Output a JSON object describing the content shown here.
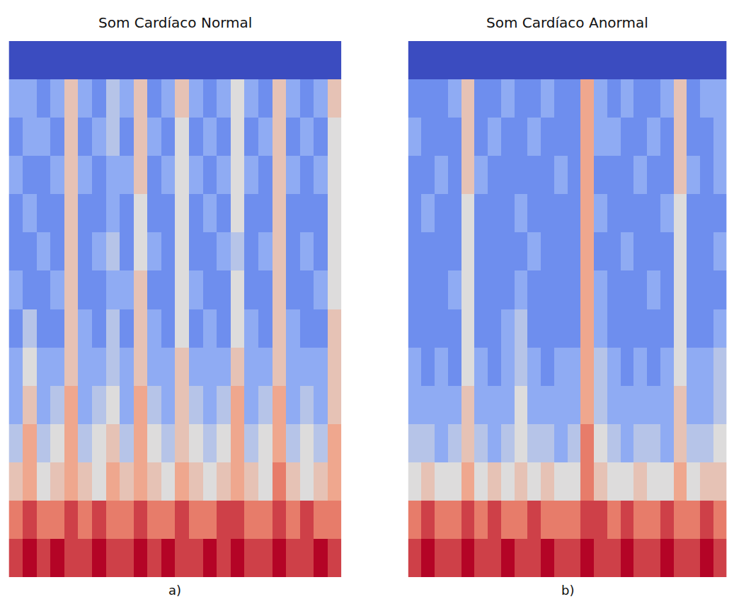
{
  "chart_data": [
    {
      "type": "heatmap",
      "title": "Som Cardíaco Normal",
      "annotation": "a)",
      "tick_labels": false,
      "zlim": [
        0,
        10
      ],
      "cells": [
        [
          0,
          0,
          0,
          0,
          0,
          0,
          0,
          0,
          0,
          0,
          0,
          0,
          0,
          0,
          0,
          0,
          0,
          0,
          0,
          0,
          0,
          0,
          0,
          0
        ],
        [
          3,
          3,
          2,
          3,
          6,
          3,
          2,
          4,
          3,
          6,
          2,
          3,
          6,
          3,
          2,
          3,
          5,
          3,
          2,
          6,
          3,
          2,
          3,
          6
        ],
        [
          2,
          3,
          3,
          2,
          6,
          2,
          3,
          4,
          2,
          6,
          3,
          2,
          5,
          2,
          3,
          2,
          5,
          2,
          3,
          6,
          2,
          3,
          2,
          5
        ],
        [
          3,
          2,
          2,
          3,
          6,
          3,
          2,
          3,
          3,
          6,
          2,
          3,
          5,
          3,
          2,
          3,
          5,
          3,
          2,
          6,
          3,
          2,
          3,
          5
        ],
        [
          2,
          3,
          2,
          2,
          6,
          2,
          2,
          3,
          2,
          5,
          2,
          2,
          5,
          2,
          3,
          2,
          5,
          2,
          2,
          6,
          2,
          2,
          2,
          5
        ],
        [
          2,
          2,
          3,
          2,
          6,
          2,
          3,
          4,
          2,
          5,
          3,
          2,
          5,
          2,
          2,
          3,
          4,
          2,
          3,
          6,
          2,
          3,
          2,
          5
        ],
        [
          3,
          2,
          2,
          3,
          6,
          2,
          2,
          3,
          3,
          6,
          2,
          2,
          5,
          3,
          2,
          2,
          5,
          2,
          2,
          6,
          2,
          2,
          3,
          5
        ],
        [
          2,
          4,
          2,
          2,
          6,
          3,
          2,
          4,
          2,
          6,
          3,
          2,
          5,
          2,
          3,
          2,
          5,
          3,
          2,
          6,
          3,
          2,
          2,
          6
        ],
        [
          3,
          5,
          3,
          3,
          6,
          3,
          3,
          4,
          3,
          6,
          3,
          3,
          6,
          3,
          3,
          3,
          6,
          3,
          3,
          6,
          3,
          3,
          3,
          6
        ],
        [
          3,
          6,
          3,
          4,
          7,
          3,
          4,
          5,
          3,
          7,
          4,
          3,
          6,
          4,
          3,
          4,
          7,
          3,
          4,
          7,
          3,
          4,
          3,
          6
        ],
        [
          4,
          7,
          4,
          5,
          7,
          4,
          5,
          6,
          4,
          7,
          5,
          4,
          6,
          5,
          4,
          5,
          7,
          4,
          5,
          7,
          4,
          5,
          4,
          7
        ],
        [
          6,
          7,
          5,
          6,
          7,
          6,
          5,
          7,
          6,
          7,
          6,
          5,
          7,
          6,
          5,
          6,
          7,
          6,
          5,
          8,
          6,
          5,
          6,
          7
        ],
        [
          8,
          9,
          8,
          8,
          9,
          8,
          9,
          8,
          8,
          9,
          8,
          8,
          9,
          8,
          8,
          9,
          9,
          8,
          8,
          9,
          8,
          9,
          8,
          8
        ],
        [
          9,
          10,
          9,
          10,
          9,
          9,
          10,
          9,
          9,
          10,
          9,
          10,
          9,
          9,
          10,
          9,
          10,
          9,
          9,
          10,
          9,
          9,
          10,
          9
        ]
      ]
    },
    {
      "type": "heatmap",
      "title": "Som Cardíaco Anormal",
      "annotation": "b)",
      "tick_labels": false,
      "zlim": [
        0,
        10
      ],
      "cells": [
        [
          0,
          0,
          0,
          0,
          0,
          0,
          0,
          0,
          0,
          0,
          0,
          0,
          0,
          0,
          0,
          0,
          0,
          0,
          0,
          0,
          0,
          0,
          0,
          0
        ],
        [
          2,
          2,
          2,
          3,
          6,
          2,
          2,
          3,
          2,
          2,
          3,
          2,
          2,
          7,
          3,
          2,
          3,
          2,
          2,
          3,
          6,
          2,
          3,
          3
        ],
        [
          3,
          2,
          2,
          2,
          6,
          2,
          3,
          2,
          2,
          3,
          2,
          2,
          2,
          7,
          3,
          3,
          2,
          2,
          3,
          2,
          6,
          2,
          2,
          3
        ],
        [
          2,
          2,
          3,
          2,
          6,
          3,
          2,
          2,
          2,
          2,
          2,
          3,
          2,
          7,
          2,
          2,
          2,
          3,
          2,
          2,
          6,
          3,
          2,
          3
        ],
        [
          2,
          3,
          2,
          2,
          5,
          2,
          2,
          2,
          3,
          2,
          2,
          2,
          2,
          7,
          3,
          2,
          2,
          2,
          2,
          3,
          5,
          2,
          2,
          2
        ],
        [
          2,
          2,
          2,
          2,
          5,
          2,
          2,
          2,
          2,
          3,
          2,
          2,
          2,
          7,
          2,
          2,
          3,
          2,
          2,
          2,
          5,
          2,
          2,
          3
        ],
        [
          2,
          2,
          2,
          3,
          5,
          2,
          2,
          2,
          3,
          2,
          2,
          2,
          2,
          7,
          3,
          2,
          2,
          2,
          3,
          2,
          5,
          2,
          2,
          2
        ],
        [
          2,
          2,
          2,
          2,
          5,
          2,
          2,
          3,
          4,
          2,
          2,
          2,
          2,
          7,
          3,
          2,
          2,
          2,
          2,
          2,
          5,
          2,
          2,
          3
        ],
        [
          3,
          2,
          3,
          2,
          5,
          3,
          2,
          3,
          4,
          3,
          2,
          3,
          3,
          7,
          4,
          3,
          2,
          3,
          2,
          3,
          5,
          3,
          3,
          4
        ],
        [
          3,
          3,
          3,
          3,
          6,
          3,
          3,
          3,
          5,
          3,
          3,
          3,
          3,
          7,
          4,
          3,
          3,
          3,
          3,
          3,
          6,
          3,
          3,
          4
        ],
        [
          4,
          4,
          3,
          4,
          6,
          4,
          3,
          4,
          5,
          4,
          4,
          3,
          4,
          8,
          5,
          4,
          3,
          4,
          4,
          3,
          6,
          4,
          4,
          5
        ],
        [
          5,
          6,
          5,
          5,
          7,
          5,
          6,
          5,
          6,
          5,
          6,
          5,
          5,
          8,
          6,
          5,
          5,
          6,
          5,
          5,
          7,
          5,
          6,
          6
        ],
        [
          8,
          9,
          8,
          8,
          9,
          8,
          9,
          8,
          8,
          9,
          8,
          8,
          8,
          9,
          9,
          8,
          9,
          8,
          8,
          9,
          8,
          8,
          9,
          8
        ],
        [
          9,
          10,
          9,
          9,
          10,
          9,
          9,
          10,
          9,
          9,
          10,
          9,
          9,
          10,
          9,
          9,
          10,
          9,
          9,
          10,
          9,
          9,
          10,
          9
        ]
      ]
    }
  ]
}
